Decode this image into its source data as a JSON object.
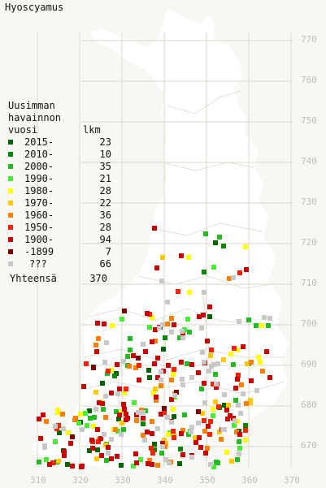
{
  "title": "Hyoscyamus",
  "legend": {
    "heading": "Uusimman\nhavainnon",
    "col_period": "vuosi",
    "col_count": "lkm",
    "rows": [
      {
        "period": "2015-",
        "count": "23",
        "color": "#006400"
      },
      {
        "period": "2010-",
        "count": "10",
        "color": "#008800"
      },
      {
        "period": "2000-",
        "count": "35",
        "color": "#22bb22"
      },
      {
        "period": "1990-",
        "count": "21",
        "color": "#44ee33"
      },
      {
        "period": "1980-",
        "count": "28",
        "color": "#ffff00"
      },
      {
        "period": "1970-",
        "count": "22",
        "color": "#ffc800"
      },
      {
        "period": "1960-",
        "count": "36",
        "color": "#ff8000"
      },
      {
        "period": "1950-",
        "count": "28",
        "color": "#ff2200"
      },
      {
        "period": "1900-",
        "count": "94",
        "color": "#cc0000"
      },
      {
        "period": "-1899",
        "count": "7",
        "color": "#800000"
      },
      {
        "period": "???",
        "count": "66",
        "color": "#c8c8c8"
      }
    ],
    "total_label": "Yhteensä",
    "total_count": "370"
  },
  "axes": {
    "northing": [
      "770",
      "760",
      "750",
      "740",
      "730",
      "720",
      "710",
      "700",
      "690",
      "680",
      "670"
    ],
    "easting": [
      "310",
      "320",
      "330",
      "340",
      "350",
      "360",
      "370"
    ]
  },
  "colors": {
    "background": "#f7f7f3",
    "land": "#ffffff",
    "grid": "#d8d8c8",
    "border": "#e0e0d4",
    "axis_text": "#bdbdbd"
  }
}
